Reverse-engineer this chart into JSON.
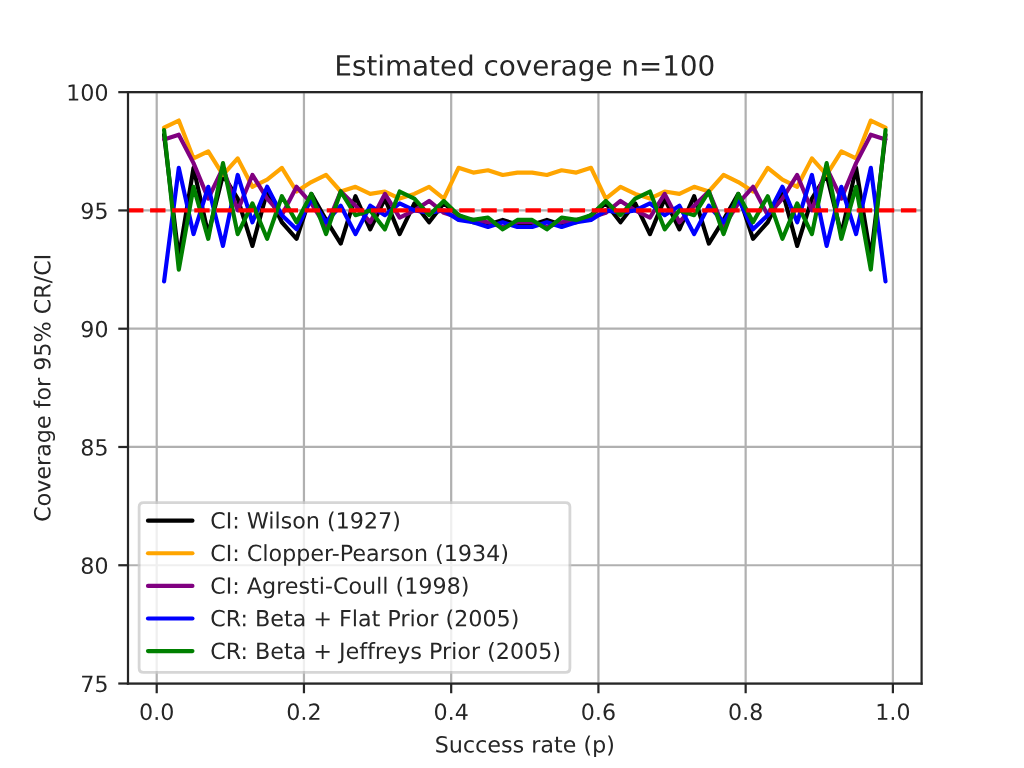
{
  "chart_data": {
    "type": "line",
    "title": "Estimated coverage n=100",
    "xlabel": "Success rate (p)",
    "ylabel": "Coverage for 95% CR/CI",
    "x": [
      0.01,
      0.03,
      0.05,
      0.07,
      0.09,
      0.11,
      0.13,
      0.15,
      0.17,
      0.19,
      0.21,
      0.23,
      0.25,
      0.27,
      0.29,
      0.31,
      0.33,
      0.35,
      0.37,
      0.39,
      0.41,
      0.43,
      0.45,
      0.47,
      0.49,
      0.51,
      0.53,
      0.55,
      0.57,
      0.59,
      0.61,
      0.63,
      0.65,
      0.67,
      0.69,
      0.71,
      0.73,
      0.75,
      0.77,
      0.79,
      0.81,
      0.83,
      0.85,
      0.87,
      0.89,
      0.91,
      0.93,
      0.95,
      0.97,
      0.99
    ],
    "series": [
      {
        "name": "CI: Wilson (1927)",
        "color": "#000000",
        "values": [
          98.2,
          93.0,
          96.8,
          94.0,
          96.5,
          95.5,
          93.5,
          95.8,
          94.5,
          93.8,
          95.7,
          94.6,
          93.6,
          95.6,
          94.2,
          95.5,
          94.0,
          95.3,
          94.5,
          95.3,
          94.8,
          94.5,
          94.4,
          94.6,
          94.4,
          94.4,
          94.6,
          94.4,
          94.5,
          94.8,
          95.3,
          94.5,
          95.3,
          94.0,
          95.5,
          94.2,
          95.6,
          93.6,
          94.6,
          95.7,
          93.8,
          94.5,
          95.8,
          93.5,
          95.5,
          96.5,
          94.0,
          96.8,
          93.0,
          98.2
        ]
      },
      {
        "name": "CI: Clopper-Pearson (1934)",
        "color": "#ffa500",
        "values": [
          98.5,
          98.8,
          97.2,
          97.5,
          96.5,
          97.2,
          96.0,
          96.3,
          96.8,
          95.8,
          96.2,
          96.5,
          95.8,
          96.0,
          95.7,
          95.8,
          95.5,
          95.7,
          96.0,
          95.5,
          96.8,
          96.6,
          96.7,
          96.5,
          96.6,
          96.6,
          96.5,
          96.7,
          96.6,
          96.8,
          95.5,
          96.0,
          95.7,
          95.5,
          95.8,
          95.7,
          96.0,
          95.8,
          96.5,
          96.2,
          95.8,
          96.8,
          96.3,
          96.0,
          97.2,
          96.5,
          97.5,
          97.2,
          98.8,
          98.5
        ]
      },
      {
        "name": "CI: Agresti-Coull (1998)",
        "color": "#800080",
        "values": [
          98.0,
          98.2,
          97.0,
          95.5,
          96.8,
          95.0,
          96.5,
          95.5,
          94.8,
          96.0,
          95.3,
          94.3,
          95.8,
          95.2,
          94.5,
          95.7,
          94.7,
          95.0,
          95.4,
          94.9,
          94.7,
          94.6,
          94.5,
          94.3,
          94.5,
          94.5,
          94.3,
          94.5,
          94.6,
          94.7,
          94.9,
          95.4,
          95.0,
          94.7,
          95.7,
          94.5,
          95.2,
          95.8,
          94.3,
          95.3,
          96.0,
          94.8,
          95.5,
          96.5,
          95.0,
          96.8,
          95.5,
          97.0,
          98.2,
          98.0
        ]
      },
      {
        "name": "CR: Beta + Flat Prior (2005)",
        "color": "#0000ff",
        "values": [
          92.0,
          96.8,
          94.0,
          96.0,
          93.5,
          96.5,
          94.5,
          96.0,
          94.8,
          94.2,
          95.5,
          94.5,
          95.2,
          94.0,
          95.2,
          94.8,
          95.3,
          95.0,
          94.9,
          95.0,
          94.6,
          94.5,
          94.3,
          94.5,
          94.3,
          94.3,
          94.5,
          94.3,
          94.5,
          94.6,
          95.0,
          94.9,
          95.0,
          95.3,
          94.8,
          95.2,
          94.0,
          95.2,
          94.5,
          95.5,
          94.2,
          94.8,
          96.0,
          94.5,
          96.5,
          93.5,
          96.0,
          94.0,
          96.8,
          92.0
        ]
      },
      {
        "name": "CR: Beta + Jeffreys Prior (2005)",
        "color": "#008000",
        "values": [
          98.4,
          92.5,
          96.0,
          93.8,
          97.0,
          94.0,
          95.3,
          93.8,
          95.6,
          94.5,
          95.7,
          94.0,
          95.8,
          94.8,
          95.0,
          94.2,
          95.8,
          95.5,
          94.8,
          95.4,
          94.8,
          94.6,
          94.7,
          94.2,
          94.6,
          94.6,
          94.2,
          94.7,
          94.6,
          94.8,
          95.4,
          94.8,
          95.5,
          95.8,
          94.2,
          95.0,
          94.8,
          95.8,
          94.0,
          95.7,
          94.5,
          95.6,
          93.8,
          95.3,
          94.0,
          97.0,
          93.8,
          96.0,
          92.5,
          98.4
        ]
      }
    ],
    "ref_lines": [
      {
        "axis": "y",
        "value": 95,
        "color": "#ff0000",
        "line_style": "dashed"
      }
    ],
    "xlim": [
      -0.039,
      1.039
    ],
    "ylim": [
      75,
      100
    ],
    "xticks": [
      {
        "value": 0,
        "label": "0.0"
      },
      {
        "value": 0.2,
        "label": "0.2"
      },
      {
        "value": 0.4,
        "label": "0.4"
      },
      {
        "value": 0.6,
        "label": "0.6"
      },
      {
        "value": 0.8,
        "label": "0.8"
      },
      {
        "value": 1,
        "label": "1.0"
      }
    ],
    "yticks": [
      75,
      80,
      85,
      90,
      95,
      100
    ],
    "grid": true,
    "legend": "lower left",
    "line_style": "solid"
  }
}
